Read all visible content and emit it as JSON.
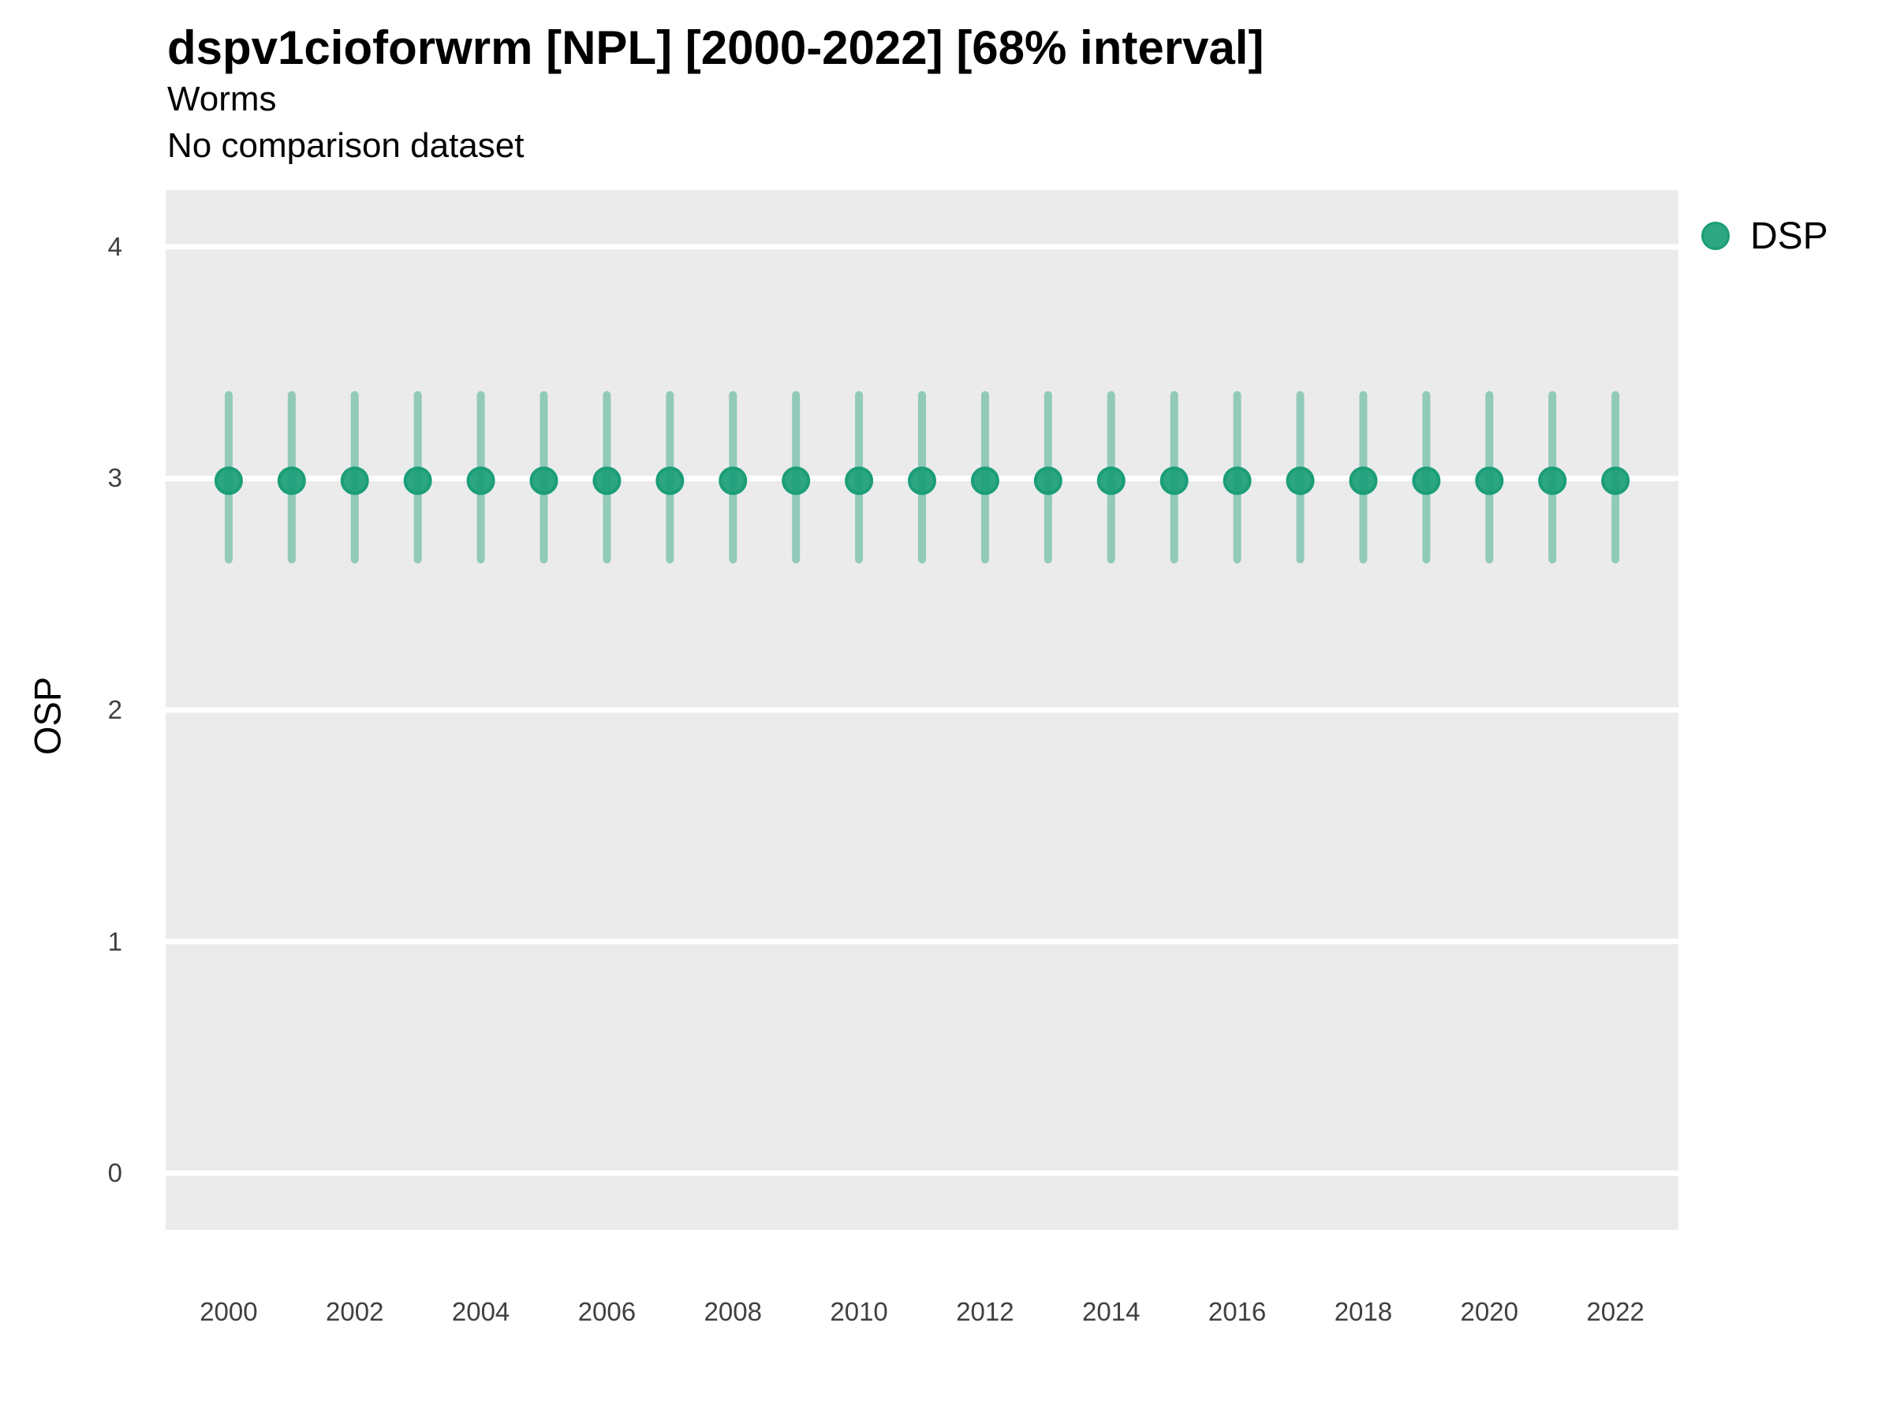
{
  "header": {
    "title": "dspv1cioforwrm [NPL] [2000-2022] [68% interval]",
    "subtitle1": "Worms",
    "subtitle2": "No comparison dataset"
  },
  "legend": {
    "position": "right",
    "items": [
      {
        "label": "DSP",
        "marker": "circle",
        "color": "#1B9E77",
        "marker_fill": "rgba(27,158,119,0.92)"
      }
    ]
  },
  "chart_data": {
    "type": "scatter",
    "title": "dspv1cioforwrm [NPL] [2000-2022] [68% interval]",
    "subtitle": [
      "Worms",
      "No comparison dataset"
    ],
    "xlabel": "",
    "ylabel": "OSP",
    "interval": "68%",
    "xlim": [
      1999,
      2023
    ],
    "ylim": [
      -0.245,
      4.245
    ],
    "xticks": [
      2000,
      2002,
      2004,
      2006,
      2008,
      2010,
      2012,
      2014,
      2016,
      2018,
      2020,
      2022
    ],
    "yticks": [
      0,
      1,
      2,
      3,
      4
    ],
    "grid": "major-horizontal",
    "grid_color": "#FFFFFF",
    "panel_bg": "#EBEBEB",
    "legend_position": "right",
    "series": [
      {
        "name": "DSP",
        "color": "#1B9E77",
        "marker_fill": "rgba(27,158,119,0.92)",
        "marker_stroke": "rgba(27,158,119,1)",
        "interval_color": "rgba(27,158,119,0.43)",
        "points": [
          {
            "x": 2000,
            "y": 2.99,
            "ymin": 2.65,
            "ymax": 3.36
          },
          {
            "x": 2001,
            "y": 2.99,
            "ymin": 2.65,
            "ymax": 3.36
          },
          {
            "x": 2002,
            "y": 2.99,
            "ymin": 2.65,
            "ymax": 3.36
          },
          {
            "x": 2003,
            "y": 2.99,
            "ymin": 2.65,
            "ymax": 3.36
          },
          {
            "x": 2004,
            "y": 2.99,
            "ymin": 2.65,
            "ymax": 3.36
          },
          {
            "x": 2005,
            "y": 2.99,
            "ymin": 2.65,
            "ymax": 3.36
          },
          {
            "x": 2006,
            "y": 2.99,
            "ymin": 2.65,
            "ymax": 3.36
          },
          {
            "x": 2007,
            "y": 2.99,
            "ymin": 2.65,
            "ymax": 3.36
          },
          {
            "x": 2008,
            "y": 2.99,
            "ymin": 2.65,
            "ymax": 3.36
          },
          {
            "x": 2009,
            "y": 2.99,
            "ymin": 2.65,
            "ymax": 3.36
          },
          {
            "x": 2010,
            "y": 2.99,
            "ymin": 2.65,
            "ymax": 3.36
          },
          {
            "x": 2011,
            "y": 2.99,
            "ymin": 2.65,
            "ymax": 3.36
          },
          {
            "x": 2012,
            "y": 2.99,
            "ymin": 2.65,
            "ymax": 3.36
          },
          {
            "x": 2013,
            "y": 2.99,
            "ymin": 2.65,
            "ymax": 3.36
          },
          {
            "x": 2014,
            "y": 2.99,
            "ymin": 2.65,
            "ymax": 3.36
          },
          {
            "x": 2015,
            "y": 2.99,
            "ymin": 2.65,
            "ymax": 3.36
          },
          {
            "x": 2016,
            "y": 2.99,
            "ymin": 2.65,
            "ymax": 3.36
          },
          {
            "x": 2017,
            "y": 2.99,
            "ymin": 2.65,
            "ymax": 3.36
          },
          {
            "x": 2018,
            "y": 2.99,
            "ymin": 2.65,
            "ymax": 3.36
          },
          {
            "x": 2019,
            "y": 2.99,
            "ymin": 2.65,
            "ymax": 3.36
          },
          {
            "x": 2020,
            "y": 2.99,
            "ymin": 2.65,
            "ymax": 3.36
          },
          {
            "x": 2021,
            "y": 2.99,
            "ymin": 2.65,
            "ymax": 3.36
          },
          {
            "x": 2022,
            "y": 2.99,
            "ymin": 2.65,
            "ymax": 3.36
          }
        ]
      }
    ]
  }
}
